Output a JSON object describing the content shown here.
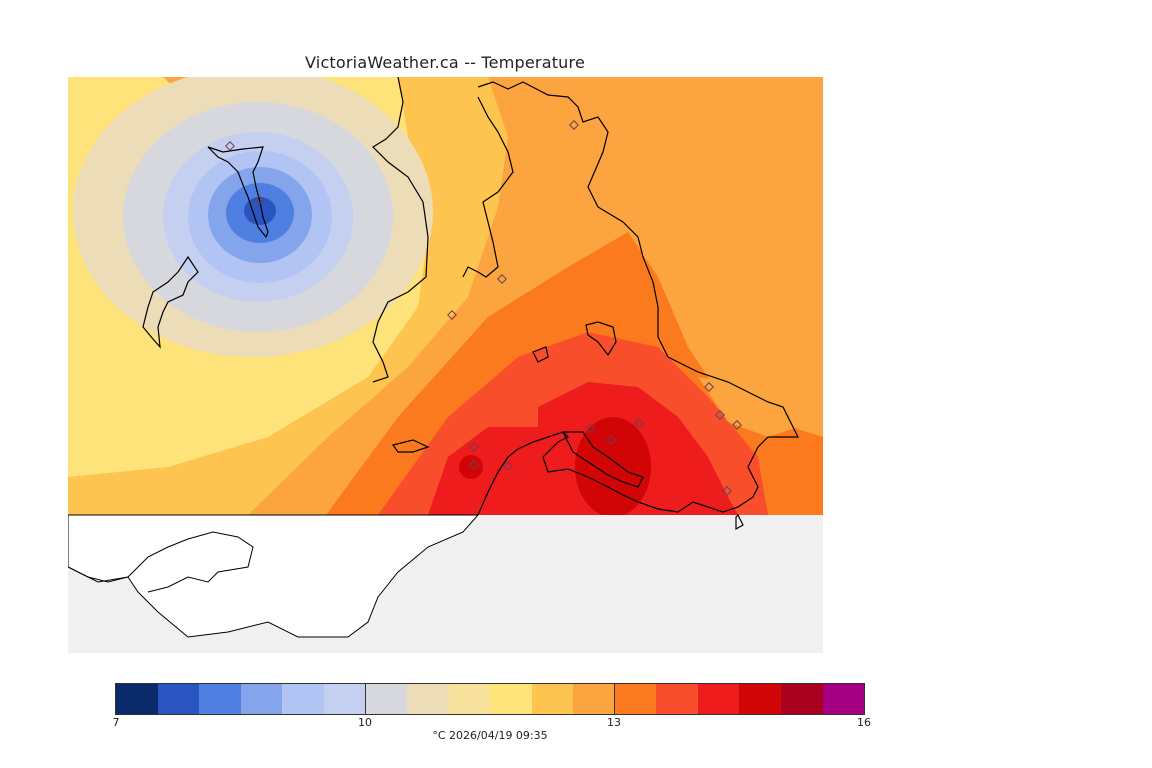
{
  "title": "VictoriaWeather.ca -- Temperature",
  "legend": {
    "colors": [
      "#0a2a6b",
      "#2a55c0",
      "#4f7fe0",
      "#84a5ec",
      "#b2c4f4",
      "#c5cff0",
      "#d6d8de",
      "#ecdcb8",
      "#f6e09b",
      "#fde37a",
      "#fdc54f",
      "#fca440",
      "#fb7a1e",
      "#f94e2c",
      "#ee1c1c",
      "#d10505",
      "#a8001e",
      "#a50083"
    ],
    "min": 7,
    "max": 16,
    "tick_labels": [
      "7",
      "10",
      "13",
      "16"
    ],
    "caption": "°C  2026/04/19 09:35"
  },
  "map": {
    "land_color": "#ffffff",
    "water_color": "#f0f0f0",
    "station_count": 18
  }
}
